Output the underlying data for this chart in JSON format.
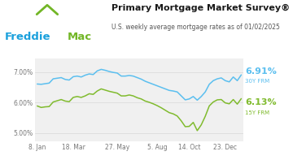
{
  "title": "Primary Mortgage Market Survey®",
  "subtitle": "U.S. weekly average mortgage rates as of 01/02/2025",
  "freddie_blue": "#1aa0dc",
  "freddie_green": "#72b626",
  "line_30y_color": "#5bbfef",
  "line_15y_color": "#80bb2e",
  "bg_color": "#ffffff",
  "plot_bg_color": "#f0f0f0",
  "label_30y": "6.91%",
  "label_30y_sub": "30Y FRM",
  "label_15y": "6.13%",
  "label_15y_sub": "15Y FRM",
  "yticks": [
    5.0,
    6.0,
    7.0
  ],
  "ytick_labels": [
    "5.00%",
    "6.00%",
    "7.00%"
  ],
  "ylim": [
    4.72,
    7.45
  ],
  "xtick_labels": [
    "8. Jan",
    "18. Mar",
    "27. May",
    "5. Aug",
    "14. Oct",
    "23. Dec"
  ],
  "xtick_positions": [
    0,
    9,
    20,
    30,
    38,
    47
  ],
  "title_fontsize": 8.0,
  "subtitle_fontsize": 5.5,
  "axis_fontsize": 5.5,
  "grid_color": "#d8d8d8",
  "x_data": [
    0,
    1,
    2,
    3,
    4,
    5,
    6,
    7,
    8,
    9,
    10,
    11,
    12,
    13,
    14,
    15,
    16,
    17,
    18,
    19,
    20,
    21,
    22,
    23,
    24,
    25,
    26,
    27,
    28,
    29,
    30,
    31,
    32,
    33,
    34,
    35,
    36,
    37,
    38,
    39,
    40,
    41,
    42,
    43,
    44,
    45,
    46,
    47,
    48,
    49,
    50,
    51
  ],
  "y_30y": [
    6.61,
    6.6,
    6.62,
    6.64,
    6.78,
    6.8,
    6.82,
    6.76,
    6.74,
    6.85,
    6.87,
    6.84,
    6.9,
    6.94,
    6.92,
    7.04,
    7.09,
    7.06,
    7.02,
    6.99,
    6.97,
    6.87,
    6.87,
    6.89,
    6.87,
    6.82,
    6.77,
    6.7,
    6.65,
    6.6,
    6.55,
    6.5,
    6.45,
    6.4,
    6.38,
    6.35,
    6.22,
    6.09,
    6.12,
    6.2,
    6.08,
    6.2,
    6.35,
    6.6,
    6.72,
    6.78,
    6.81,
    6.72,
    6.68,
    6.84,
    6.72,
    6.91
  ],
  "y_15y": [
    5.89,
    5.84,
    5.86,
    5.87,
    6.02,
    6.06,
    6.1,
    6.05,
    6.03,
    6.17,
    6.2,
    6.17,
    6.22,
    6.29,
    6.27,
    6.38,
    6.45,
    6.41,
    6.37,
    6.34,
    6.31,
    6.22,
    6.22,
    6.25,
    6.22,
    6.16,
    6.12,
    6.05,
    6.01,
    5.96,
    5.9,
    5.83,
    5.75,
    5.67,
    5.63,
    5.56,
    5.4,
    5.21,
    5.22,
    5.35,
    5.08,
    5.27,
    5.55,
    5.89,
    6.02,
    6.09,
    6.1,
    5.99,
    5.96,
    6.1,
    5.95,
    6.13
  ],
  "logo_freddie_text": "Freddie",
  "logo_mac_text": "Mac",
  "logo_fontsize": 9.5
}
